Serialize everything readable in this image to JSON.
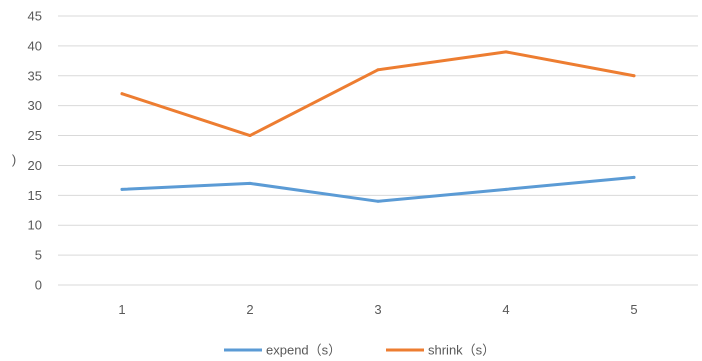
{
  "chart_data": {
    "type": "line",
    "categories": [
      "1",
      "2",
      "3",
      "4",
      "5"
    ],
    "series": [
      {
        "name": "expend（s）",
        "values": [
          16,
          17,
          14,
          16,
          18
        ],
        "color": "#5b9bd5"
      },
      {
        "name": "shrink（s）",
        "values": [
          32,
          25,
          36,
          39,
          35
        ],
        "color": "#ed7d31"
      }
    ],
    "ylim": [
      0,
      45
    ],
    "yticks": [
      "0",
      "5",
      "10",
      "15",
      "20",
      "25",
      "30",
      "35",
      "40",
      "45"
    ],
    "ylabel": ")",
    "grid": true,
    "legend": "bottom"
  }
}
